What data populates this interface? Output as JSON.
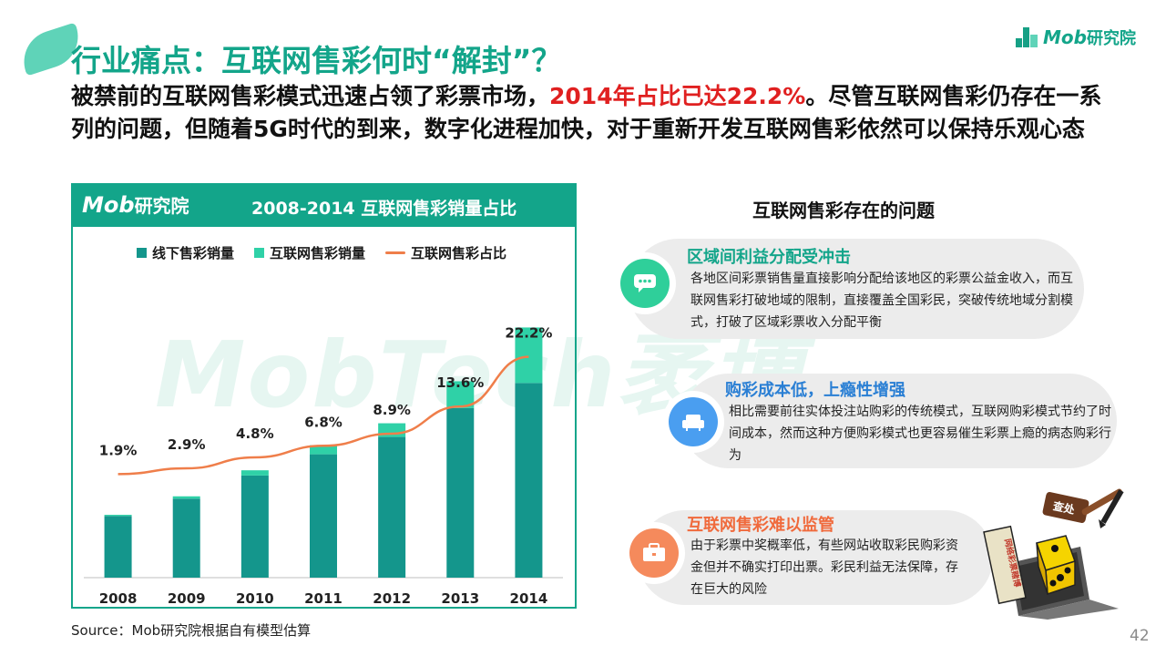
{
  "header": {
    "title": "行业痛点：互联网售彩何时“解封”？",
    "logo_text": "Mob",
    "logo_sub": "研究院"
  },
  "lead": {
    "part1": "被禁前的互联网售彩模式迅速占领了彩票市场，",
    "highlight": "2014年占比已达22.2%",
    "part2": "。尽管互联网售彩仍存在一系列的问题，但随着5G时代的到来，数字化进程加快，对于重新开发互联网售彩依然可以保持乐观心态"
  },
  "watermark": "MobTech袤博",
  "chart_panel": {
    "logo_text": "Mob",
    "logo_sub": "研究院",
    "title": "2008-2014 互联网售彩销量占比"
  },
  "chart_data": {
    "type": "bar",
    "categories": [
      "2008",
      "2009",
      "2010",
      "2011",
      "2012",
      "2013",
      "2014"
    ],
    "series": [
      {
        "name": "线下售彩销量",
        "kind": "stacked-bar",
        "color": "#14968c",
        "values": [
          32,
          41,
          53,
          64,
          73,
          88,
          101
        ]
      },
      {
        "name": "互联网售彩销量",
        "kind": "stacked-bar",
        "color": "#2fd1a7",
        "values": [
          0.6,
          1.2,
          2.7,
          4.7,
          7.1,
          13.9,
          28.8
        ]
      },
      {
        "name": "互联网售彩占比",
        "kind": "line",
        "color": "#ef7e4a",
        "values": [
          1.9,
          2.9,
          4.8,
          6.8,
          8.9,
          13.6,
          22.2
        ]
      }
    ],
    "line_labels": [
      "1.9%",
      "2.9%",
      "4.8%",
      "6.8%",
      "8.9%",
      "13.6%",
      "22.2%"
    ],
    "title": "2008-2014 互联网售彩销量占比",
    "xlabel": "",
    "ylabel": "",
    "bar_ylim": [
      0,
      156
    ],
    "line_ylim": [
      -16,
      36
    ],
    "grid": false,
    "legend": "top"
  },
  "issues": {
    "title": "互联网售彩存在的问题",
    "cards": [
      {
        "heading": "区域间利益分配受冲击",
        "heading_color": "#13a58a",
        "icon": "chat-bubble-icon",
        "icon_color": "#2fcf9a",
        "body": "各地区间彩票销售量直接影响分配给该地区的彩票公益金收入，而互联网售彩打破地域的限制，直接覆盖全国彩民，突破传统地域分割模式，打破了区域彩票收入分配平衡"
      },
      {
        "heading": "购彩成本低，上瘾性增强",
        "heading_color": "#2a7fd4",
        "icon": "armchair-icon",
        "icon_color": "#4a9ef0",
        "body": "相比需要前往实体投注站购彩的传统模式，互联网购彩模式节约了时间成本，然而这种方便购彩模式也更容易催生彩票上瘾的病态购彩行为"
      },
      {
        "heading": "互联网售彩难以监管",
        "heading_color": "#f06a3c",
        "icon": "briefcase-icon",
        "icon_color": "#f58a5c",
        "body": "由于彩票中奖概率低，有些网站收取彩民购彩资金但并不确实打印出票。彩民利益无法保障，存在巨大的风险"
      }
    ]
  },
  "illustration": {
    "gavel_text": "查处",
    "sign_text": "网络彩票赌博"
  },
  "source": "Source：Mob研究院根据自有模型估算",
  "page_number": "42"
}
